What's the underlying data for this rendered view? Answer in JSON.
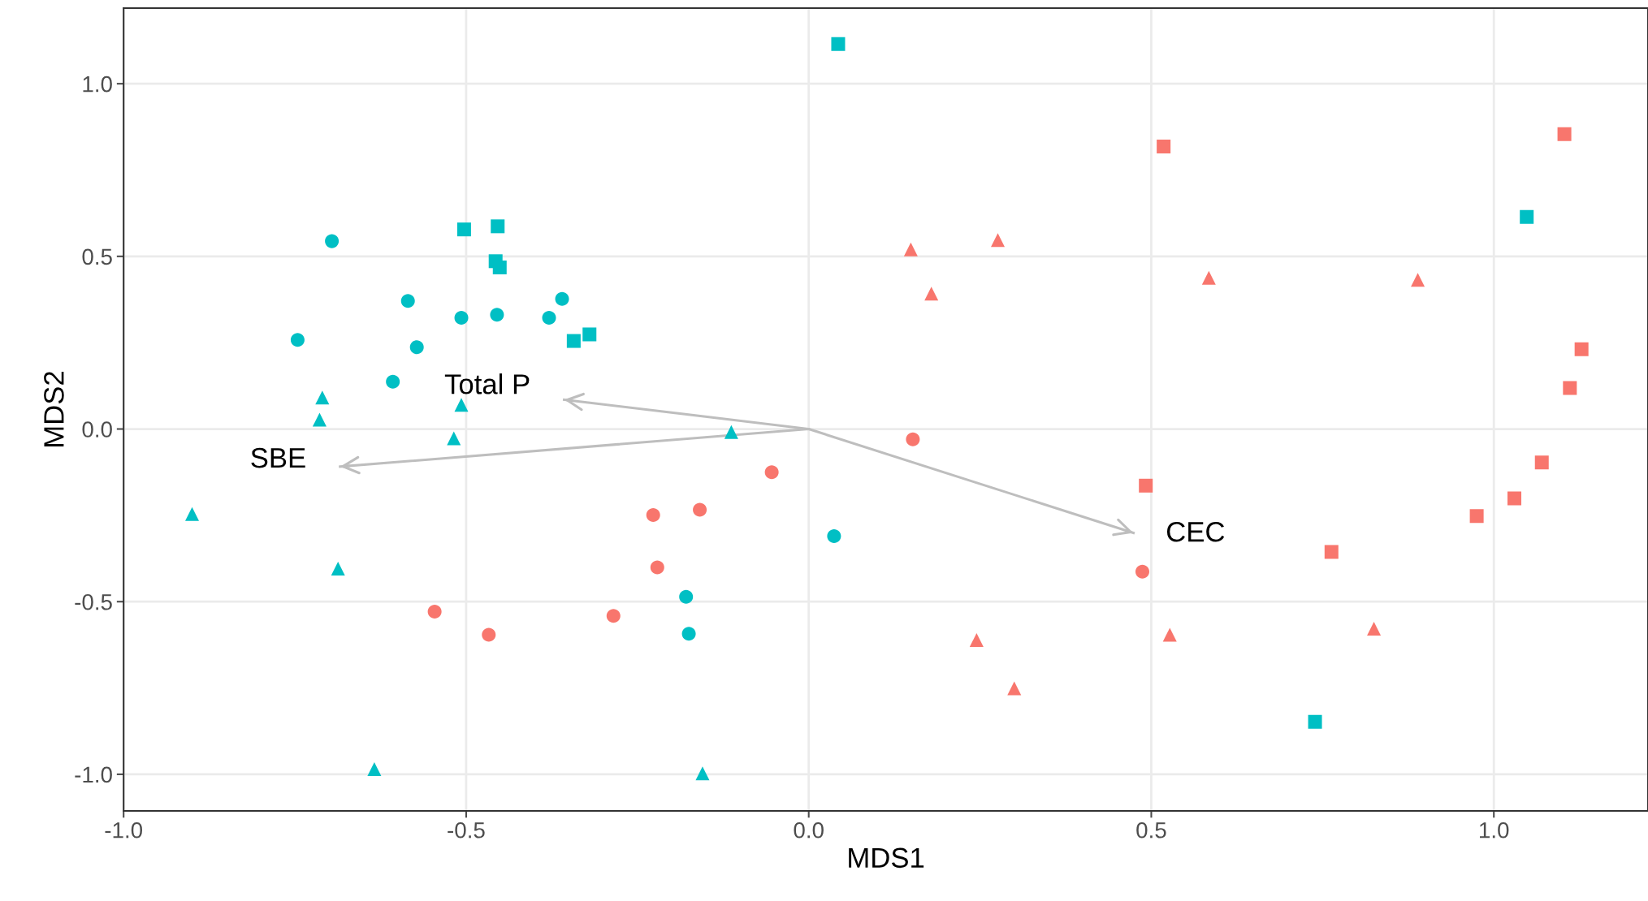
{
  "chart_data": {
    "type": "scatter",
    "xlabel": "MDS1",
    "ylabel": "MDS2",
    "xlim": [
      -1.0,
      1.225
    ],
    "ylim": [
      -1.106,
      1.219
    ],
    "xticks": [
      {
        "value": -1.0,
        "label": "-1.0"
      },
      {
        "value": -0.5,
        "label": "-0.5"
      },
      {
        "value": 0.0,
        "label": "0.0"
      },
      {
        "value": 0.5,
        "label": "0.5"
      },
      {
        "value": 1.0,
        "label": "1.0"
      }
    ],
    "yticks": [
      {
        "value": -1.0,
        "label": "-1.0"
      },
      {
        "value": -0.5,
        "label": "-0.5"
      },
      {
        "value": 0.0,
        "label": "0.0"
      },
      {
        "value": 0.5,
        "label": "0.5"
      },
      {
        "value": 1.0,
        "label": "1.0"
      }
    ],
    "grid": true,
    "series": [
      {
        "marker": "square",
        "color": "#00bfc4",
        "x": [
          0.043,
          -0.503,
          -0.454,
          -0.457,
          -0.451,
          -0.343,
          -0.32,
          1.048,
          0.739
        ],
        "values": [
          1.115,
          0.578,
          0.587,
          0.486,
          0.468,
          0.255,
          0.274,
          0.614,
          -0.848
        ]
      },
      {
        "marker": "circle",
        "color": "#00bfc4",
        "x": [
          -0.696,
          -0.746,
          -0.585,
          -0.507,
          -0.455,
          -0.379,
          -0.36,
          -0.572,
          -0.607,
          0.037,
          -0.179,
          -0.175
        ],
        "values": [
          0.544,
          0.258,
          0.371,
          0.322,
          0.331,
          0.322,
          0.377,
          0.237,
          0.137,
          -0.31,
          -0.486,
          -0.593
        ]
      },
      {
        "marker": "triangle",
        "color": "#00bfc4",
        "x": [
          -0.71,
          -0.714,
          -0.507,
          -0.518,
          -0.113,
          -0.9,
          -0.687,
          -0.634,
          -0.155
        ],
        "values": [
          0.091,
          0.027,
          0.07,
          -0.027,
          -0.009,
          -0.246,
          -0.404,
          -0.985,
          -0.997
        ]
      },
      {
        "marker": "square",
        "color": "#f8766d",
        "x": [
          0.518,
          1.103,
          1.128,
          1.111,
          1.07,
          1.03,
          0.975,
          0.763,
          0.492
        ],
        "values": [
          0.818,
          0.854,
          0.231,
          0.119,
          -0.097,
          -0.201,
          -0.252,
          -0.356,
          -0.164
        ]
      },
      {
        "marker": "circle",
        "color": "#f8766d",
        "x": [
          0.152,
          -0.054,
          -0.227,
          -0.159,
          -0.221,
          -0.285,
          -0.546,
          -0.467,
          0.487
        ],
        "values": [
          -0.03,
          -0.125,
          -0.249,
          -0.234,
          -0.401,
          -0.541,
          -0.529,
          -0.596,
          -0.413
        ]
      },
      {
        "marker": "triangle",
        "color": "#f8766d",
        "x": [
          0.149,
          0.276,
          0.179,
          0.584,
          0.889,
          0.245,
          0.3,
          0.527,
          0.825
        ],
        "values": [
          0.52,
          0.547,
          0.392,
          0.438,
          0.432,
          -0.611,
          -0.751,
          -0.596,
          -0.578
        ]
      },
      {
        "type": "line",
        "color": "#bebebe",
        "x": [
          -0.684,
          0.0,
          0.474
        ],
        "values": [
          -0.109,
          0.0,
          -0.301
        ]
      },
      {
        "type": "line",
        "color": "#bebebe",
        "x": [
          0.0,
          -0.357
        ],
        "values": [
          0.0,
          0.085
        ]
      }
    ],
    "annotations": [
      "SBE",
      "CEC",
      "Total P"
    ]
  }
}
